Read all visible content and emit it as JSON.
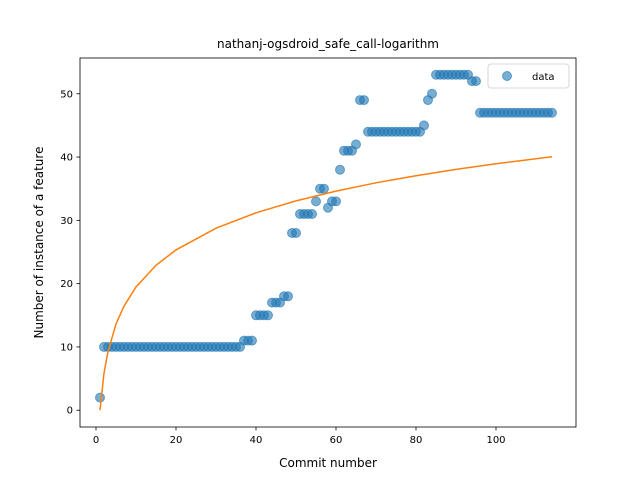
{
  "chart_data": {
    "type": "scatter",
    "title": "nathanj-ogsdroid_safe_call-logarithm",
    "xlabel": "Commit number",
    "ylabel": "Number of instance of a feature",
    "xlim": [
      -4,
      120
    ],
    "ylim": [
      -2.65,
      55.65
    ],
    "xticks": [
      0,
      20,
      40,
      60,
      80,
      100
    ],
    "yticks": [
      0,
      10,
      20,
      30,
      40,
      50
    ],
    "grid": false,
    "legend": {
      "position": "top-right",
      "entries": [
        "data"
      ]
    },
    "colors": {
      "data": "#1f77b4",
      "fit": "#ff7f0e"
    },
    "series": [
      {
        "name": "data",
        "kind": "scatter",
        "x": [
          1,
          2,
          3,
          4,
          5,
          6,
          7,
          8,
          9,
          10,
          11,
          12,
          13,
          14,
          15,
          16,
          17,
          18,
          19,
          20,
          21,
          22,
          23,
          24,
          25,
          26,
          27,
          28,
          29,
          30,
          31,
          32,
          33,
          34,
          35,
          36,
          37,
          38,
          39,
          40,
          41,
          42,
          43,
          44,
          45,
          46,
          47,
          48,
          49,
          50,
          51,
          52,
          53,
          54,
          55,
          56,
          57,
          58,
          59,
          60,
          61,
          62,
          63,
          64,
          65,
          66,
          67,
          68,
          69,
          70,
          71,
          72,
          73,
          74,
          75,
          76,
          77,
          78,
          79,
          80,
          81,
          82,
          83,
          84,
          85,
          86,
          87,
          88,
          89,
          90,
          91,
          92,
          93,
          94,
          95,
          96,
          97,
          98,
          99,
          100,
          101,
          102,
          103,
          104,
          105,
          106,
          107,
          108,
          109,
          110,
          111,
          112,
          113,
          114
        ],
        "y": [
          2,
          10,
          10,
          10,
          10,
          10,
          10,
          10,
          10,
          10,
          10,
          10,
          10,
          10,
          10,
          10,
          10,
          10,
          10,
          10,
          10,
          10,
          10,
          10,
          10,
          10,
          10,
          10,
          10,
          10,
          10,
          10,
          10,
          10,
          10,
          10,
          11,
          11,
          11,
          15,
          15,
          15,
          15,
          17,
          17,
          17,
          18,
          18,
          28,
          28,
          31,
          31,
          31,
          31,
          33,
          35,
          35,
          32,
          33,
          33,
          38,
          41,
          41,
          41,
          42,
          49,
          49,
          44,
          44,
          44,
          44,
          44,
          44,
          44,
          44,
          44,
          44,
          44,
          44,
          44,
          44,
          45,
          49,
          50,
          53,
          53,
          53,
          53,
          53,
          53,
          53,
          53,
          53,
          52,
          52,
          47,
          47,
          47,
          47,
          47,
          47,
          47,
          47,
          47,
          47,
          47,
          47,
          47,
          47,
          47,
          47,
          47,
          47,
          47
        ]
      }
    ],
    "fit": {
      "kind": "logarithmic-curve",
      "x": [
        1,
        2,
        3,
        5,
        7,
        10,
        15,
        20,
        30,
        40,
        50,
        60,
        70,
        80,
        90,
        100,
        110,
        114
      ],
      "y": [
        0,
        5.86,
        9.29,
        13.62,
        16.46,
        19.47,
        22.9,
        25.33,
        28.76,
        31.19,
        33.08,
        34.62,
        35.93,
        37.05,
        38.05,
        38.94,
        39.74,
        40.04
      ]
    }
  }
}
